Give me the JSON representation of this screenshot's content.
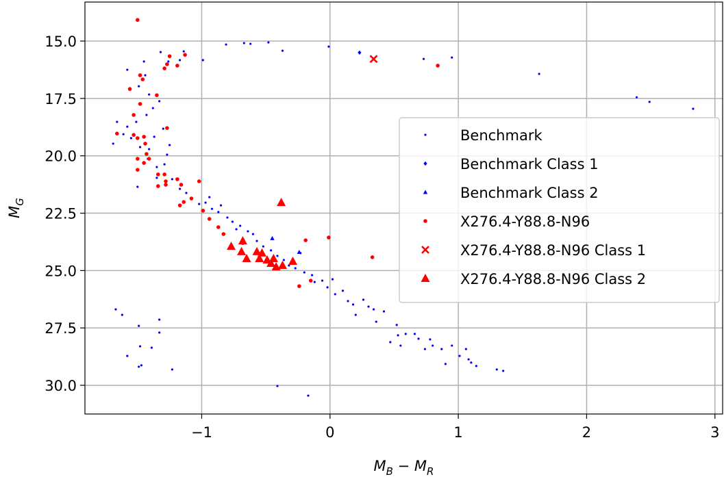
{
  "chart_data": {
    "type": "scatter",
    "xlabel": [
      "M",
      "B",
      " − M",
      "R"
    ],
    "ylabel": [
      "M",
      "G"
    ],
    "xlim": [
      -1.91,
      3.06
    ],
    "ylim": [
      13.3,
      31.25
    ],
    "y_inverted": true,
    "grid": true,
    "legend_position": "right",
    "xticks": [
      {
        "value": -1,
        "label": "−1"
      },
      0,
      1,
      2,
      3
    ],
    "yticks": [
      {
        "value": 15,
        "label": "15.0"
      },
      17.5,
      {
        "value": 20,
        "label": "20.0"
      },
      22.5,
      {
        "value": 25,
        "label": "25.0"
      },
      27.5,
      {
        "value": 30,
        "label": "30.0"
      }
    ],
    "series": [
      {
        "name": "Benchmark",
        "color": "#0000ff",
        "marker": "point",
        "x": [
          -0.99,
          -1.14,
          -1.17,
          -1.32,
          -1.26,
          -0.81,
          -0.67,
          -0.62,
          -0.48,
          -0.37,
          -0.01,
          0.73,
          0.95,
          1.63,
          2.39,
          2.49,
          2.83,
          -1.58,
          -1.45,
          -1.44,
          -1.49,
          -1.41,
          -1.38,
          -1.33,
          -1.43,
          -1.51,
          -1.58,
          -1.66,
          -1.69,
          -1.61,
          -1.55,
          -1.48,
          -1.41,
          -1.42,
          -1.35,
          -1.29,
          -1.27,
          -1.25,
          -1.3,
          -1.37,
          -1.5,
          -1.35,
          -1.23,
          -1.17,
          -1.12,
          -1.08,
          -1.02,
          -0.97,
          -0.94,
          -0.92,
          -0.87,
          -0.85,
          -0.8,
          -0.76,
          -0.73,
          -0.7,
          -0.64,
          -0.6,
          -0.57,
          -0.52,
          -0.46,
          -0.41,
          -0.36,
          -0.32,
          -0.27,
          -0.23,
          -0.2,
          -0.14,
          -0.12,
          -0.06,
          -0.02,
          0.02,
          0.04,
          0.1,
          0.14,
          0.18,
          0.2,
          0.26,
          0.3,
          0.34,
          0.36,
          0.42,
          0.52,
          0.53,
          0.59,
          0.66,
          0.69,
          0.78,
          0.47,
          0.55,
          0.74,
          0.8,
          0.87,
          0.9,
          0.95,
          1.01,
          1.06,
          1.08,
          1.1,
          1.14,
          1.3,
          1.35,
          -1.67,
          -1.62,
          -1.49,
          -1.33,
          -1.33,
          -1.48,
          -1.39,
          -1.58,
          -1.49,
          -1.47,
          -1.23,
          -0.41,
          -0.17
        ],
        "values": [
          15.83,
          15.45,
          15.83,
          15.48,
          15.89,
          15.15,
          15.09,
          15.12,
          15.06,
          15.42,
          15.24,
          15.78,
          15.72,
          16.43,
          17.45,
          17.65,
          17.95,
          16.25,
          15.89,
          16.49,
          16.97,
          17.33,
          17.92,
          17.62,
          18.22,
          18.52,
          18.73,
          18.52,
          19.47,
          19.06,
          19.23,
          19.62,
          19.71,
          20.13,
          20.49,
          20.37,
          19.95,
          19.53,
          18.82,
          19.17,
          21.35,
          20.96,
          21.02,
          21.44,
          21.62,
          21.86,
          22.1,
          22.04,
          21.8,
          22.31,
          22.45,
          22.16,
          22.69,
          22.87,
          23.2,
          23.05,
          23.29,
          23.41,
          23.71,
          23.95,
          24.12,
          24.36,
          24.54,
          24.78,
          24.9,
          24.24,
          25.08,
          25.2,
          25.5,
          25.44,
          25.73,
          25.38,
          26.03,
          25.88,
          26.33,
          26.48,
          26.93,
          26.27,
          26.57,
          26.69,
          27.23,
          26.78,
          27.37,
          27.82,
          27.76,
          27.76,
          27.97,
          28.0,
          28.12,
          28.27,
          28.42,
          28.27,
          28.42,
          29.07,
          28.27,
          28.72,
          28.42,
          28.87,
          29.01,
          29.16,
          29.31,
          29.37,
          26.69,
          26.93,
          27.41,
          27.14,
          27.7,
          28.3,
          28.36,
          28.72,
          29.19,
          29.13,
          29.31,
          30.03,
          30.45
        ]
      },
      {
        "name": "Benchmark Class 1",
        "color": "#0000ff",
        "marker": "diamond",
        "x": [
          0.23
        ],
        "values": [
          15.5
        ]
      },
      {
        "name": "Benchmark Class 2",
        "color": "#0000ff",
        "marker": "triangle-small",
        "x": [
          -0.45,
          -0.24
        ],
        "values": [
          23.6,
          24.2
        ]
      },
      {
        "name": "X276.4-Y88.8-N96",
        "color": "#ff0000",
        "marker": "circle",
        "x": [
          -1.5,
          -1.29,
          -1.27,
          -1.25,
          -1.19,
          -1.13,
          -1.48,
          -1.46,
          -1.56,
          -1.35,
          -1.48,
          -1.53,
          -1.66,
          -1.53,
          -1.5,
          -1.45,
          -1.27,
          -1.44,
          -1.43,
          -1.5,
          -1.41,
          -1.45,
          -1.5,
          -1.34,
          -1.29,
          -1.28,
          -1.34,
          -1.19,
          -1.16,
          -1.28,
          -1.14,
          -1.17,
          -1.02,
          -1.08,
          -0.99,
          -0.94,
          -0.87,
          -0.83,
          -0.68,
          -0.19,
          -0.01,
          0.33,
          -0.15,
          -0.24,
          0.84
        ],
        "values": [
          14.08,
          16.19,
          16.01,
          15.66,
          16.07,
          15.6,
          16.49,
          16.67,
          17.09,
          17.36,
          17.74,
          18.22,
          19.03,
          19.09,
          19.23,
          19.17,
          18.79,
          19.47,
          19.92,
          20.13,
          20.13,
          20.31,
          20.61,
          20.81,
          20.81,
          21.11,
          21.32,
          21.02,
          21.26,
          21.26,
          22.01,
          22.16,
          21.11,
          21.86,
          22.39,
          22.75,
          23.11,
          23.41,
          23.8,
          23.68,
          23.56,
          24.42,
          25.44,
          25.68,
          16.07
        ]
      },
      {
        "name": "X276.4-Y88.8-N96 Class 1",
        "color": "#ff0000",
        "marker": "x",
        "x": [
          0.34
        ],
        "values": [
          15.78
        ]
      },
      {
        "name": "X276.4-Y88.8-N96 Class 2",
        "color": "#ff0000",
        "marker": "triangle",
        "x": [
          -0.77,
          -0.68,
          -0.69,
          -0.65,
          -0.57,
          -0.55,
          -0.53,
          -0.49,
          -0.44,
          -0.42,
          -0.37,
          -0.29,
          -0.38,
          -0.46
        ],
        "values": [
          23.95,
          23.71,
          24.18,
          24.48,
          24.18,
          24.48,
          24.24,
          24.54,
          24.48,
          24.84,
          24.78,
          24.6,
          22.04,
          24.69
        ]
      }
    ]
  }
}
